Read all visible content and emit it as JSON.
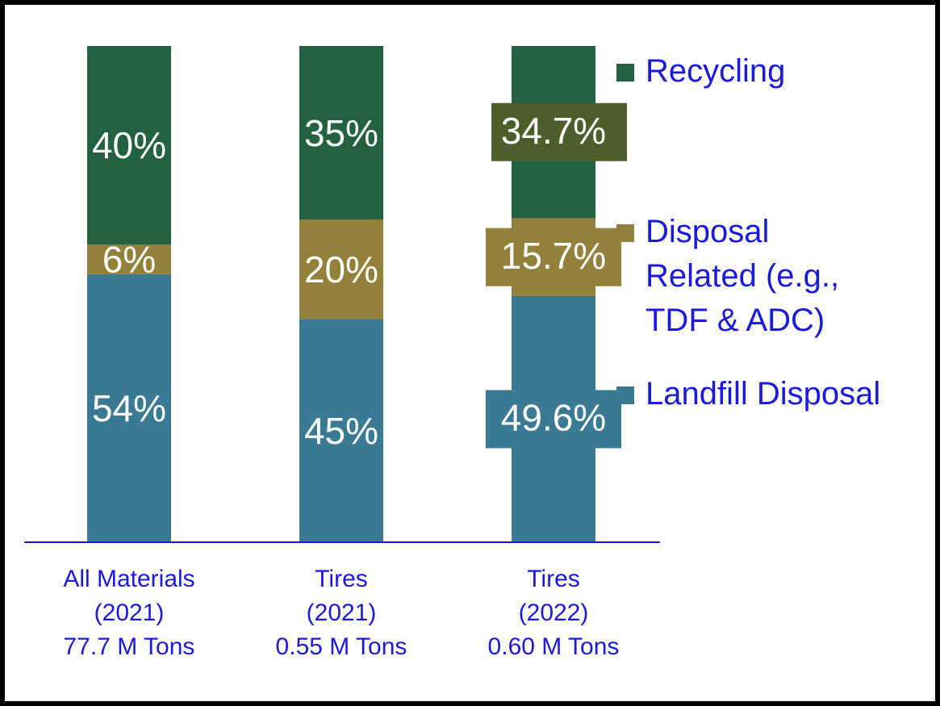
{
  "chart_data": {
    "type": "stacked_bar",
    "categories": [
      [
        "All Materials",
        "(2021)",
        "77.7 M Tons"
      ],
      [
        "Tires",
        "(2021)",
        "0.55 M Tons"
      ],
      [
        "Tires",
        "(2022)",
        "0.60 M Tons"
      ]
    ],
    "ylim": [
      0,
      100
    ],
    "series": [
      {
        "name": "Landfill Disposal",
        "color": "#3a7a94",
        "values": [
          54,
          45,
          49.6
        ],
        "value_labels": [
          "54%",
          "45%",
          "49.6%"
        ]
      },
      {
        "name": "Disposal Related (e.g., TDF & ADC)",
        "color": "#93803a",
        "values": [
          6,
          20,
          15.7
        ],
        "value_labels": [
          "6%",
          "20%",
          "15.7%"
        ]
      },
      {
        "name": "Recycling",
        "color": "#236241",
        "values": [
          40,
          35,
          34.7
        ],
        "value_labels": [
          "40%",
          "35%",
          "34.7%"
        ]
      }
    ],
    "legend": "right"
  }
}
